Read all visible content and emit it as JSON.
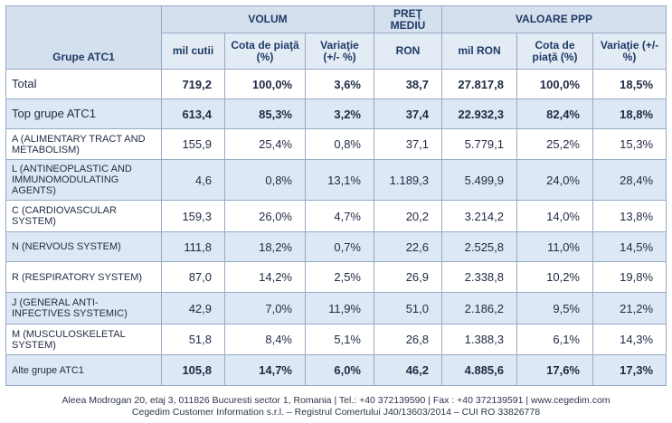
{
  "header": {
    "group_col": "Grupe ATC1",
    "volum": "VOLUM",
    "pret_line1": "PREŢ",
    "pret_line2": "MEDIU",
    "valoare": "VALOARE PPP",
    "volum_sub": [
      "mil cutii",
      "Cota de piaţă (%)",
      "Variaţie (+/- %)"
    ],
    "pret_sub": "RON",
    "valoare_sub": [
      "mil RON",
      "Cota de piaţă (%)",
      "Variaţie (+/- %)"
    ]
  },
  "rows": [
    {
      "label": "Total",
      "vals": [
        "719,2",
        "100,0%",
        "3,6%",
        "38,7",
        "27.817,8",
        "100,0%",
        "18,5%"
      ]
    },
    {
      "label": "Top grupe ATC1",
      "vals": [
        "613,4",
        "85,3%",
        "3,2%",
        "37,4",
        "22.932,3",
        "82,4%",
        "18,8%"
      ]
    },
    {
      "label": "A (ALIMENTARY TRACT AND METABOLISM)",
      "vals": [
        "155,9",
        "25,4%",
        "0,8%",
        "37,1",
        "5.779,1",
        "25,2%",
        "15,3%"
      ]
    },
    {
      "label": "L (ANTINEOPLASTIC AND IMMUNOMODULATING AGENTS)",
      "vals": [
        "4,6",
        "0,8%",
        "13,1%",
        "1.189,3",
        "5.499,9",
        "24,0%",
        "28,4%"
      ]
    },
    {
      "label": "C (CARDIOVASCULAR SYSTEM)",
      "vals": [
        "159,3",
        "26,0%",
        "4,7%",
        "20,2",
        "3.214,2",
        "14,0%",
        "13,8%"
      ]
    },
    {
      "label": "N (NERVOUS SYSTEM)",
      "vals": [
        "111,8",
        "18,2%",
        "0,7%",
        "22,6",
        "2.525,8",
        "11,0%",
        "14,5%"
      ]
    },
    {
      "label": "R (RESPIRATORY SYSTEM)",
      "vals": [
        "87,0",
        "14,2%",
        "2,5%",
        "26,9",
        "2.338,8",
        "10,2%",
        "19,8%"
      ]
    },
    {
      "label": "J (GENERAL ANTI-INFECTIVES SYSTEMIC)",
      "vals": [
        "42,9",
        "7,0%",
        "11,9%",
        "51,0",
        "2.186,2",
        "9,5%",
        "21,2%"
      ]
    },
    {
      "label": "M (MUSCULOSKELETAL SYSTEM)",
      "vals": [
        "51,8",
        "8,4%",
        "5,1%",
        "26,8",
        "1.388,3",
        "6,1%",
        "14,3%"
      ]
    },
    {
      "label": "Alte grupe ATC1",
      "vals": [
        "105,8",
        "14,7%",
        "6,0%",
        "46,2",
        "4.885,6",
        "17,6%",
        "17,3%"
      ]
    }
  ],
  "footer": {
    "line1": "Aleea Modrogan 20, etaj 3, 011826 Bucuresti sector 1, Romania | Tel.: +40 372139590 | Fax : +40 372139591 | www.cegedim.com",
    "line2": "Cegedim Customer Information s.r.l. – Registrul Comertului J40/13603/2014 – CUI RO 33826778"
  }
}
